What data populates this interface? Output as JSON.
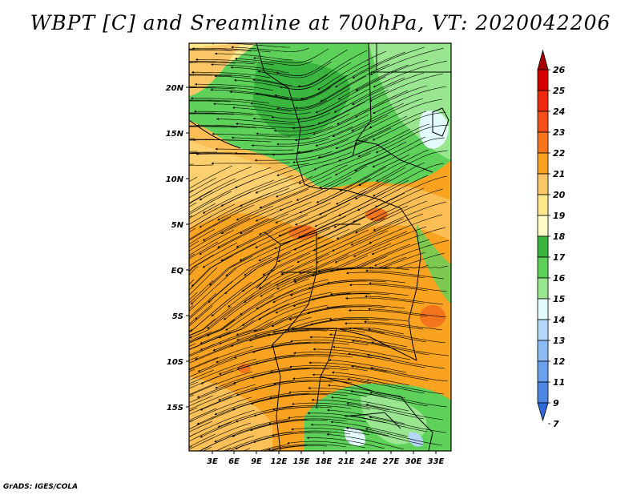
{
  "title": "WBPT [C] and Sreamline at 700hPa, VT: 2020042206",
  "footer": "GrADS: IGES/COLA",
  "map": {
    "lat_labels": [
      "20N",
      "15N",
      "10N",
      "5N",
      "EQ",
      "5S",
      "10S",
      "15S"
    ],
    "lon_labels": [
      "3E",
      "6E",
      "9E",
      "12E",
      "15E",
      "18E",
      "21E",
      "24E",
      "27E",
      "30E",
      "33E"
    ],
    "colors": {
      "warm_orange": "#f9a320",
      "light_orange": "#fbc766",
      "pale_yellow": "#fde88c",
      "green_mid": "#5ed15a",
      "green_dark": "#3ab53f",
      "green_light": "#9ae690",
      "cyan_pale": "#e2fbfb",
      "blue_pale": "#b5d6fb",
      "deep_orange": "#f5751c"
    }
  },
  "colorbar": {
    "levels": [
      "26",
      "25",
      "24",
      "23",
      "22",
      "21",
      "20",
      "19",
      "18",
      "17",
      "16",
      "15",
      "14",
      "13",
      "12",
      "11",
      "9",
      "7"
    ],
    "colors": [
      "#a80000",
      "#d60000",
      "#ee2a0e",
      "#f5501a",
      "#f5751c",
      "#f9a320",
      "#fbc766",
      "#fde88c",
      "#fefbc4",
      "#3ab53f",
      "#5ed15a",
      "#9ae690",
      "#e2fbfb",
      "#b5d6fb",
      "#8cbcf3",
      "#6aa0ee",
      "#4e86e2",
      "#2e6adc"
    ]
  }
}
